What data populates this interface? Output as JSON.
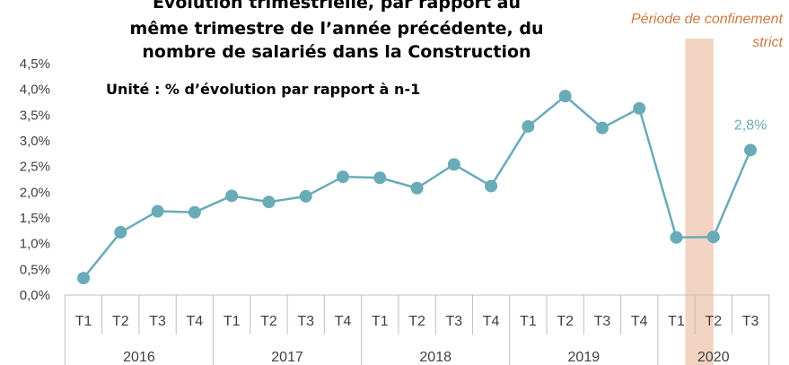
{
  "chart_data": {
    "type": "line",
    "title": [
      "Évolution trimestrielle, par rapport au",
      "même trimestre de l’année précédente, du",
      "nombre de salariés dans la Construction"
    ],
    "subtitle": "Unité : % d’évolution par rapport à n-1",
    "annotation": [
      "Période de confinement",
      "strict"
    ],
    "categories": [
      "T1",
      "T2",
      "T3",
      "T4",
      "T1",
      "T2",
      "T3",
      "T4",
      "T1",
      "T2",
      "T3",
      "T4",
      "T1",
      "T2",
      "T3",
      "T4",
      "T1",
      "T2",
      "T3"
    ],
    "category_groups": [
      "2016",
      "2017",
      "2018",
      "2019",
      "2020"
    ],
    "values": [
      0.33,
      1.22,
      1.63,
      1.61,
      1.93,
      1.81,
      1.92,
      2.3,
      2.28,
      2.08,
      2.54,
      2.12,
      3.28,
      3.87,
      3.25,
      3.63,
      1.12,
      1.13,
      2.82
    ],
    "value_labels": [
      null,
      null,
      null,
      null,
      null,
      null,
      null,
      null,
      null,
      null,
      null,
      null,
      null,
      null,
      null,
      null,
      null,
      null,
      "2,8%"
    ],
    "color": "#6aabb8",
    "annotation_color": "#f3d3c2",
    "ylim": [
      0,
      4.5
    ],
    "yticks": [
      {
        "value": 0,
        "label": "0,0%"
      },
      {
        "value": 0.5,
        "label": "0,5%"
      },
      {
        "value": 1,
        "label": "1,0%"
      },
      {
        "value": 1.5,
        "label": "1,5%"
      },
      {
        "value": 2,
        "label": "2,0%"
      },
      {
        "value": 2.5,
        "label": "2,5%"
      },
      {
        "value": 3,
        "label": "3,0%"
      },
      {
        "value": 3.5,
        "label": "3,5%"
      },
      {
        "value": 4,
        "label": "4,0%"
      },
      {
        "value": 4.5,
        "label": "4,5%"
      }
    ],
    "grid": false
  }
}
